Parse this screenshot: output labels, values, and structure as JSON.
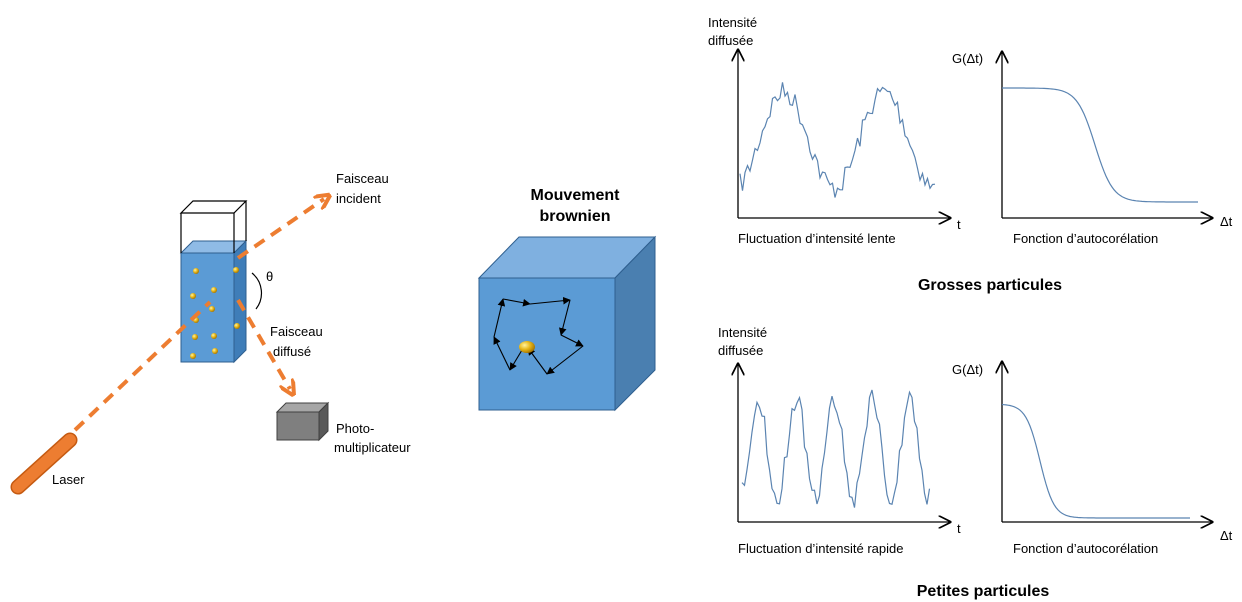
{
  "setup": {
    "laser_label": "Laser",
    "incident_label": [
      "Faisceau",
      "incident"
    ],
    "scattered_label": [
      "Faisceau",
      "diffusé"
    ],
    "angle_label": "θ",
    "detector_label": [
      "Photo-",
      "multiplicateur"
    ]
  },
  "brownian": {
    "title": [
      "Mouvement",
      "brownien"
    ]
  },
  "large": {
    "section_title": "Grosses particules",
    "intensity_ylabel": [
      "Intensité",
      "diffusée"
    ],
    "intensity_xlabel": "t",
    "intensity_caption": "Fluctuation d’intensité lente",
    "autocorr_ylabel": "G(Δt)",
    "autocorr_xlabel": "Δt",
    "autocorr_caption": "Fonction d’autocorélation"
  },
  "small": {
    "section_title": "Petites particules",
    "intensity_ylabel": [
      "Intensité",
      "diffusée"
    ],
    "intensity_xlabel": "t",
    "intensity_caption": "Fluctuation d’intensité rapide",
    "autocorr_ylabel": "G(Δt)",
    "autocorr_xlabel": "Δt",
    "autocorr_caption": "Fonction d’autocorélation"
  },
  "colors": {
    "beam": "#ed7d31",
    "liquid": "#5b9bd5",
    "signal": "#5b84b1",
    "detector": "#7f7f7f"
  }
}
